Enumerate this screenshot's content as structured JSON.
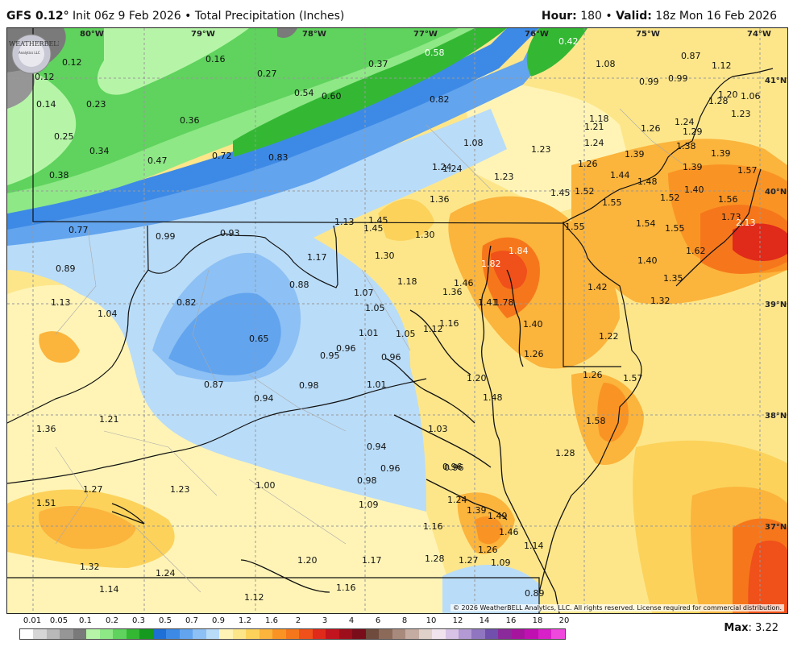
{
  "header": {
    "model": "GFS 0.12",
    "degree_symbol": "°",
    "init": "Init 06z 9 Feb 2026",
    "bullet": "•",
    "product": "Total Precipitation (Inches)",
    "hour_label": "Hour:",
    "hour_value": "180",
    "valid_label": "Valid:",
    "valid_value": "18z Mon 16 Feb 2026"
  },
  "map": {
    "lon_labels": [
      "80°W",
      "79°W",
      "78°W",
      "77°W",
      "76°W",
      "75°W",
      "74°W"
    ],
    "lat_labels": [
      "41°N",
      "40°N",
      "39°N",
      "38°N",
      "37°N"
    ],
    "copyright": "© 2026 WeatherBELL Analytics, LLC. All rights reserved. License required for commercial distribution.",
    "logo_text": "WEATHERBELL",
    "logo_sub": "Analytics LLC",
    "values": [
      "0.12",
      "0.16",
      "0.12",
      "0.14",
      "0.23",
      "0.27",
      "0.37",
      "0.58",
      "0.42",
      "1.08",
      "0.87",
      "1.12",
      "0.25",
      "0.34",
      "0.36",
      "0.54",
      "0.60",
      "0.82",
      "0.99",
      "0.99",
      "1.20",
      "1.06",
      "0.38",
      "0.47",
      "0.72",
      "0.83",
      "1.18",
      "1.21",
      "1.26",
      "1.24",
      "1.28",
      "1.23",
      "1.08",
      "1.23",
      "1.24",
      "1.29",
      "1.38",
      "1.39",
      "1.24",
      "1.24",
      "1.26",
      "1.39",
      "1.57",
      "1.23",
      "1.44",
      "1.39",
      "1.48",
      "1.40",
      "1.36",
      "1.45",
      "1.52",
      "1.52",
      "1.56",
      "1.55",
      "1.54",
      "1.55",
      "1.73",
      "2.13",
      "0.77",
      "0.99",
      "0.93",
      "1.13",
      "1.45",
      "1.45",
      "1.30",
      "1.55",
      "1.17",
      "1.30",
      "1.84",
      "1.82",
      "1.62",
      "1.40",
      "0.89",
      "0.88",
      "1.18",
      "1.46",
      "1.35",
      "1.42",
      "1.13",
      "0.82",
      "1.07",
      "1.36",
      "1.32",
      "1.04",
      "1.05",
      "1.78",
      "1.41",
      "1.40",
      "1.16",
      "1.01",
      "1.05",
      "1.12",
      "1.22",
      "0.65",
      "0.96",
      "0.95",
      "0.96",
      "1.26",
      "1.26",
      "1.20",
      "1.57",
      "0.87",
      "0.98",
      "1.01",
      "0.94",
      "1.48",
      "1.21",
      "1.58",
      "0.96",
      "1.36",
      "1.03",
      "0.94",
      "1.28",
      "0.96",
      "0.96",
      "1.27",
      "1.23",
      "1.00",
      "0.98",
      "1.51",
      "1.09",
      "1.24",
      "1.39",
      "1.49",
      "1.16",
      "1.46",
      "1.14",
      "1.26",
      "1.28",
      "1.27",
      "1.09",
      "1.32",
      "1.20",
      "1.17",
      "1.24",
      "1.14",
      "1.12",
      "1.16",
      "0.89"
    ]
  },
  "legend": {
    "ticks": [
      "0.01",
      "0.05",
      "0.1",
      "0.2",
      "0.3",
      "0.5",
      "0.7",
      "0.9",
      "1.2",
      "1.6",
      "2",
      "3",
      "4",
      "6",
      "8",
      "10",
      "12",
      "14",
      "16",
      "18",
      "20"
    ],
    "colors": [
      "#ffffff",
      "#d6d6d6",
      "#b8b8b8",
      "#969696",
      "#7a7a7a",
      "#b6f5a8",
      "#8ee886",
      "#5fd35d",
      "#34b834",
      "#159a1f",
      "#1e6fd6",
      "#3d8ae6",
      "#62a4ee",
      "#8dc0f4",
      "#b9dcf8",
      "#fff4b6",
      "#fde68a",
      "#fcd25b",
      "#fbb43c",
      "#f99424",
      "#f6771b",
      "#f0501a",
      "#e02a1a",
      "#c2141e",
      "#9e0f1c",
      "#7a0d1a",
      "#6e4b3c",
      "#8c6a5a",
      "#a88a7c",
      "#c4aca2",
      "#e0d0ca",
      "#f2e4ee",
      "#d8c2e6",
      "#b49ad4",
      "#9076c0",
      "#7050ac",
      "#8b2a9b",
      "#a6149e",
      "#c010b2",
      "#d820c8",
      "#ee48dc"
    ],
    "max_label": "Max",
    "max_value": ": 3.22"
  },
  "colors": {
    "green_dark": "#159a1f",
    "blue_mid": "#3d8ae6",
    "yellow": "#fde68a",
    "orange": "#f99424",
    "red": "#e02a1a"
  }
}
